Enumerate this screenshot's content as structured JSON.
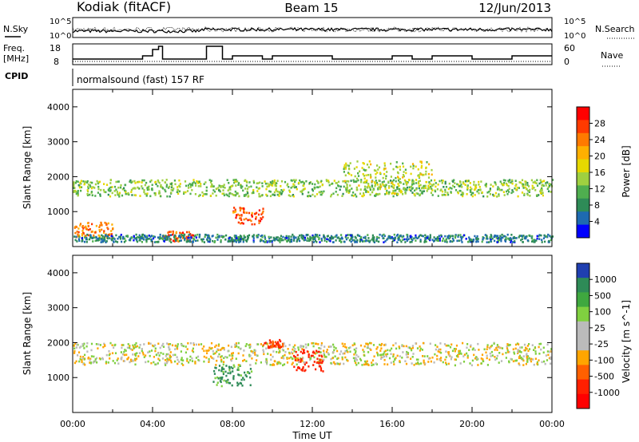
{
  "header": {
    "radar": "Kodiak (fitACF)",
    "beam": "Beam 15",
    "date": "12/Jun/2013"
  },
  "top_labels": {
    "nsky": "N.Sky",
    "nsearch": "N.Search",
    "freq": "Freq.",
    "mhz": "[MHz]",
    "nave": "Nave",
    "cpid": "CPID",
    "cpid_value": "normalsound (fast) 157 RF",
    "sky_ticks": [
      "10^5",
      "10^0"
    ],
    "search_ticks": [
      "10^5",
      "10^0"
    ],
    "freq_ticks": [
      "18",
      "8"
    ],
    "nave_ticks": [
      "60",
      "0"
    ]
  },
  "xaxis": {
    "label": "Time UT",
    "ticks": [
      "00:00",
      "04:00",
      "08:00",
      "12:00",
      "16:00",
      "20:00",
      "00:00"
    ]
  },
  "power_panel": {
    "ylabel": "Slant Range [km]",
    "yticks": [
      "4000",
      "3000",
      "2000",
      "1000"
    ],
    "cbar_label": "Power [dB]",
    "cbar_ticks": [
      "28",
      "24",
      "20",
      "16",
      "12",
      "8",
      "4"
    ],
    "cbar_colors": [
      "#ff0000",
      "#ff3a00",
      "#ff7a00",
      "#ffb000",
      "#e6d800",
      "#9fd040",
      "#4fae4f",
      "#2e8b57",
      "#1e6ab0",
      "#0000ff"
    ]
  },
  "velocity_panel": {
    "ylabel": "Slant Range [km]",
    "yticks": [
      "4000",
      "3000",
      "2000",
      "1000"
    ],
    "cbar_label": "Velocity [m s^-1]",
    "cbar_ticks": [
      "1000",
      "500",
      "100",
      "25",
      "-25",
      "-100",
      "-500",
      "-1000"
    ],
    "cbar_colors": [
      "#1f3fb0",
      "#2e8b57",
      "#3fa83f",
      "#80d040",
      "#bbbbbb",
      "#bbbbbb",
      "#ffa500",
      "#ff6000",
      "#ff2000",
      "#ff0000"
    ]
  },
  "chart_data": [
    {
      "type": "heatmap",
      "title": "Power",
      "xlabel": "Time UT",
      "ylabel": "Slant Range [km]",
      "x_range_hours": [
        0,
        24
      ],
      "ylim": [
        0,
        4500
      ],
      "value_label": "Power [dB]",
      "colorbar_range": [
        0,
        30
      ],
      "features": [
        {
          "t_start": 0,
          "t_end": 24,
          "range_center": 1700,
          "range_width": 300,
          "level": 14
        },
        {
          "t_start": 0,
          "t_end": 2,
          "range_center": 500,
          "range_width": 300,
          "level": 24
        },
        {
          "t_start": 4.5,
          "t_end": 6,
          "range_center": 300,
          "range_width": 200,
          "level": 26
        },
        {
          "t_start": 8,
          "t_end": 9.5,
          "range_center": 900,
          "range_width": 300,
          "level": 26
        },
        {
          "t_start": 13.5,
          "t_end": 18,
          "range_center": 2000,
          "range_width": 600,
          "level": 16
        },
        {
          "t_start": 0,
          "t_end": 24,
          "range_center": 250,
          "range_width": 150,
          "level": 8
        }
      ]
    },
    {
      "type": "heatmap",
      "title": "Velocity",
      "xlabel": "Time UT",
      "ylabel": "Slant Range [km]",
      "x_range_hours": [
        0,
        24
      ],
      "ylim": [
        0,
        4500
      ],
      "value_label": "Velocity [m s^-1]",
      "colorbar_range": [
        -1000,
        1000
      ],
      "features": [
        {
          "t_start": 0,
          "t_end": 24,
          "range_center": 1700,
          "range_width": 400,
          "velocity": 0
        },
        {
          "t_start": 7,
          "t_end": 9,
          "range_center": 1100,
          "range_width": 400,
          "velocity": 150
        },
        {
          "t_start": 11,
          "t_end": 12.5,
          "range_center": 1500,
          "range_width": 400,
          "velocity": -700
        },
        {
          "t_start": 9.5,
          "t_end": 10.5,
          "range_center": 2000,
          "range_width": 150,
          "velocity": -500
        }
      ]
    }
  ]
}
